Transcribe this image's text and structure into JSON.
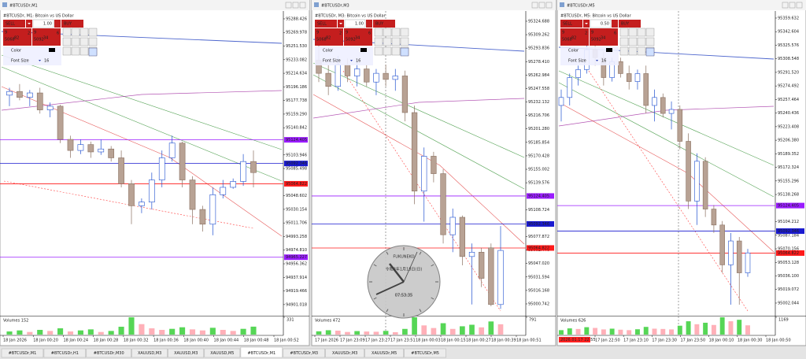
{
  "tabs": [
    "#BTCUSDr,M1",
    "#BTCUSDr,H1",
    "#BTCUSDr,M30",
    "XAUUSD,M3",
    "XAUUSD,M3",
    "XAUUSD,M5",
    "#BTCUSDr,M1",
    "#BTCUSDr,M3",
    "XAUUSDr,M3",
    "XAUUSDr,M5",
    "#BTCUSDr,M5"
  ],
  "active_tab": 6,
  "windows": [
    {
      "title": "#BTCUSDr,M1",
      "chart_label": "#BTCUSDr, M1:  Bitcoin vs US Dollar",
      "panel": {
        "sell": "SELL",
        "lot": "1.00",
        "buy": "BUY",
        "bid": [
          "9",
          "5068",
          "82",
          "2"
        ],
        "ask": [
          "9",
          "5092",
          "34",
          "6"
        ],
        "color": "Color",
        "font_size_label": "Font Size",
        "font_size": "16"
      },
      "ylim": [
        94887,
        95298
      ],
      "yticks": [
        95288.426,
        95269.978,
        {
          "value": 95251.53,
          "label": "95251.530"
        },
        95233.082,
        95214.634,
        95196.186,
        95177.738,
        {
          "value": 95159.29,
          "label": "95159.290"
        },
        95140.842,
        95103.946,
        95085.498,
        95048.602,
        95030.154,
        95011.706,
        94993.258,
        {
          "value": 94974.81,
          "label": "94974.810"
        },
        94956.362,
        94937.914,
        94919.466,
        94901.018
      ],
      "levels": [
        {
          "value": 95124.405,
          "color": "#9a1cff"
        },
        {
          "value": 95092.346,
          "color": "#1a1ad0"
        },
        {
          "value": 95064.822,
          "color": "#ff1a1a"
        },
        {
          "value": 94965.227,
          "color": "#9a1cff"
        }
      ],
      "candles": [
        [
          95185,
          95195,
          95170,
          95190
        ],
        [
          95190,
          95200,
          95178,
          95182
        ],
        [
          95182,
          95192,
          95170,
          95188
        ],
        [
          95188,
          95195,
          95160,
          95165
        ],
        [
          95165,
          95175,
          95155,
          95170
        ],
        [
          95170,
          95172,
          95120,
          95125
        ],
        [
          95125,
          95130,
          95100,
          95110
        ],
        [
          95110,
          95125,
          95105,
          95118
        ],
        [
          95118,
          95122,
          95100,
          95108
        ],
        [
          95108,
          95125,
          95104,
          95112
        ],
        [
          95112,
          95116,
          95095,
          95100
        ],
        [
          95100,
          95110,
          95060,
          95065
        ],
        [
          95065,
          95070,
          95010,
          95035
        ],
        [
          95035,
          95045,
          95025,
          95040
        ],
        [
          95040,
          95080,
          95030,
          95070
        ],
        [
          95070,
          95110,
          95060,
          95100
        ],
        [
          95100,
          95130,
          95095,
          95120
        ],
        [
          95120,
          95122,
          95060,
          95070
        ],
        [
          95070,
          95075,
          95010,
          95030
        ],
        [
          95030,
          95035,
          95000,
          95010
        ],
        [
          95010,
          95060,
          94995,
          95050
        ],
        [
          95050,
          95070,
          95045,
          95060
        ],
        [
          95060,
          95072,
          95058,
          95068
        ],
        [
          95068,
          95105,
          95062,
          95095
        ],
        [
          95095,
          95110,
          95060,
          95080
        ]
      ],
      "volumes_label": "Volumes 152",
      "volumes": [
        60,
        80,
        50,
        90,
        70,
        120,
        60,
        80,
        100,
        50,
        70,
        150,
        331,
        200,
        120,
        90,
        110,
        140,
        100,
        80,
        130,
        90,
        70,
        110,
        152
      ],
      "vlim": [
        0,
        331
      ],
      "vticks": [
        331
      ],
      "xlabels": [
        "18 Jan 2026",
        "18 Jan 00:20",
        "18 Jan 00:24",
        "18 Jan 00:28",
        "18 Jan 00:32",
        "18 Jan 00:36",
        "18 Jan 00:40",
        "18 Jan 00:44",
        "18 Jan 00:48",
        "18 Jan 00:52"
      ]
    },
    {
      "title": "#BTCUSDr,M3",
      "chart_label": "#BTCUSDr, M3:  Bitcoin vs US Dollar",
      "panel": {
        "sell": "SELL",
        "lot": "1.00",
        "buy": "BUY",
        "bid": [
          "9",
          "5068",
          "82",
          "2"
        ],
        "ask": [
          "9",
          "5092",
          "34",
          "6"
        ],
        "color": "Color",
        "font_size_label": "Font Size",
        "font_size": "16"
      },
      "ylim": [
        94988.1,
        95335.5
      ],
      "yticks": [
        95324.688,
        95309.262,
        95293.836,
        {
          "value": 95278.41,
          "label": "95278.410"
        },
        95262.984,
        95247.558,
        95232.132,
        95216.706,
        {
          "value": 95201.28,
          "label": "95201.280"
        },
        95185.854,
        95170.428,
        95155.002,
        95139.576,
        95108.724,
        95077.872,
        95062.446,
        {
          "value": 95047.02,
          "label": "95047.020"
        },
        95031.594,
        95016.168,
        95000.742
      ],
      "levels": [
        {
          "value": 95124.405,
          "color": "#9a1cff"
        },
        {
          "value": 95092.346,
          "color": "#1a1ad0"
        },
        {
          "value": 95064.822,
          "color": "#ff1a1a"
        }
      ],
      "candles": [
        [
          95280,
          95300,
          95255,
          95265
        ],
        [
          95265,
          95275,
          95240,
          95250
        ],
        [
          95250,
          95285,
          95245,
          95275
        ],
        [
          95275,
          95282,
          95255,
          95262
        ],
        [
          95262,
          95280,
          95250,
          95270
        ],
        [
          95270,
          95275,
          95250,
          95255
        ],
        [
          95255,
          95270,
          95240,
          95265
        ],
        [
          95265,
          95275,
          95250,
          95258
        ],
        [
          95258,
          95270,
          95245,
          95262
        ],
        [
          95262,
          95268,
          95210,
          95220
        ],
        [
          95220,
          95228,
          95115,
          95130
        ],
        [
          95130,
          95180,
          95095,
          95170
        ],
        [
          95170,
          95175,
          95140,
          95150
        ],
        [
          95150,
          95155,
          95070,
          95080
        ],
        [
          95080,
          95110,
          95060,
          95100
        ],
        [
          95100,
          95102,
          95045,
          95055
        ],
        [
          95055,
          95070,
          95000,
          95060
        ],
        [
          95060,
          95065,
          95020,
          95030
        ],
        [
          95065,
          95070,
          94998,
          95000
        ],
        [
          95000,
          95090,
          94995,
          95062
        ]
      ],
      "volumes_label": "Volumes 472",
      "volumes": [
        150,
        200,
        180,
        120,
        160,
        140,
        130,
        170,
        110,
        260,
        791,
        420,
        300,
        520,
        260,
        380,
        450,
        330,
        600,
        472
      ],
      "vlim": [
        0,
        791
      ],
      "vticks": [
        791
      ],
      "xlabels": [
        "17 Jan 2026",
        "17 Jan 23:09",
        "17 Jan 23:27",
        "17 Jan 23:51",
        "18 Jan 00:03",
        "18 Jan 00:15",
        "18 Jan 00:27",
        "18 Jan 00:39",
        "18 Jan 00:51"
      ]
    },
    {
      "title": "#BTCUSDr,M5",
      "chart_label": "#BTCUSDr, M5:  Bitcoin vs US Dollar",
      "panel": {
        "sell": "SELL",
        "lot": "0.50",
        "buy": "BUY",
        "bid": [
          "9",
          "5068",
          "82",
          "2"
        ],
        "ask": [
          "9",
          "5092",
          "34",
          "6"
        ],
        "color": "Color",
        "font_size_label": "Font Size",
        "font_size": "16"
      },
      "ylim": [
        94987.2,
        95367.5
      ],
      "yticks": [
        95359.632,
        95342.604,
        95325.576,
        95308.548,
        {
          "value": 95291.52,
          "label": "95291.520"
        },
        95274.492,
        95257.464,
        95240.436,
        95223.408,
        {
          "value": 95206.38,
          "label": "95206.380"
        },
        95189.352,
        95172.324,
        95155.296,
        95138.268,
        95104.212,
        95087.184,
        95070.156,
        95053.128,
        {
          "value": 95036.1,
          "label": "95036.100"
        },
        95019.072,
        95002.044
      ],
      "levels": [
        {
          "value": 95124.405,
          "color": "#9a1cff"
        },
        {
          "value": 95092.346,
          "color": "#1a1ad0"
        },
        {
          "value": 95064.822,
          "color": "#ff1a1a"
        }
      ],
      "candles": [
        [
          95250,
          95270,
          95230,
          95260
        ],
        [
          95260,
          95290,
          95250,
          95285
        ],
        [
          95285,
          95300,
          95275,
          95295
        ],
        [
          95295,
          95330,
          95290,
          95320
        ],
        [
          95320,
          95345,
          95300,
          95310
        ],
        [
          95310,
          95318,
          95275,
          95285
        ],
        [
          95285,
          95310,
          95280,
          95305
        ],
        [
          95305,
          95310,
          95285,
          95290
        ],
        [
          95290,
          95300,
          95270,
          95280
        ],
        [
          95280,
          95295,
          95270,
          95290
        ],
        [
          95290,
          95300,
          95240,
          95250
        ],
        [
          95250,
          95270,
          95230,
          95260
        ],
        [
          95260,
          95265,
          95235,
          95240
        ],
        [
          95240,
          95255,
          95220,
          95245
        ],
        [
          95245,
          95250,
          95195,
          95205
        ],
        [
          95205,
          95215,
          95120,
          95130
        ],
        [
          95130,
          95190,
          95100,
          95180
        ],
        [
          95180,
          95185,
          95110,
          95120
        ],
        [
          95120,
          95125,
          95090,
          95100
        ],
        [
          95100,
          95105,
          95040,
          95050
        ],
        [
          95050,
          95090,
          95000,
          95080
        ],
        [
          95080,
          95085,
          95000,
          95040
        ],
        [
          95040,
          95070,
          95035,
          95065
        ]
      ],
      "volumes_label": "Volumes 626",
      "volumes": [
        300,
        420,
        380,
        500,
        450,
        350,
        400,
        330,
        300,
        360,
        520,
        400,
        380,
        350,
        600,
        900,
        700,
        800,
        650,
        1169,
        900,
        1000,
        626
      ],
      "vlim": [
        0,
        1169
      ],
      "vticks": [
        1169
      ],
      "time_marker": "2026.01.17 22:55",
      "xlabels": [
        "17 Jan 22:50",
        "17 Jan 23:10",
        "17 Jan 23:30",
        "17 Jan 23:50",
        "18 Jan 00:10",
        "18 Jan 00:30",
        "18 Jan 00:50"
      ]
    }
  ],
  "clock": {
    "brand": "FUKUNEKO",
    "date": "令和8年1月18日(日)",
    "time": "07:53:35"
  }
}
